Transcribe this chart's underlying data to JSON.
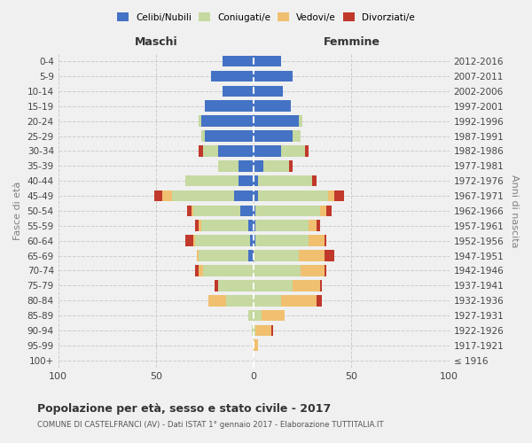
{
  "age_groups": [
    "100+",
    "95-99",
    "90-94",
    "85-89",
    "80-84",
    "75-79",
    "70-74",
    "65-69",
    "60-64",
    "55-59",
    "50-54",
    "45-49",
    "40-44",
    "35-39",
    "30-34",
    "25-29",
    "20-24",
    "15-19",
    "10-14",
    "5-9",
    "0-4"
  ],
  "birth_years": [
    "≤ 1916",
    "1917-1921",
    "1922-1926",
    "1927-1931",
    "1932-1936",
    "1937-1941",
    "1942-1946",
    "1947-1951",
    "1952-1956",
    "1957-1961",
    "1962-1966",
    "1967-1971",
    "1972-1976",
    "1977-1981",
    "1982-1986",
    "1987-1991",
    "1992-1996",
    "1997-2001",
    "2002-2006",
    "2007-2011",
    "2012-2016"
  ],
  "male_celibi": [
    0,
    0,
    0,
    0,
    0,
    0,
    0,
    3,
    2,
    3,
    7,
    10,
    8,
    8,
    18,
    25,
    27,
    25,
    16,
    22,
    16
  ],
  "male_coniugati": [
    0,
    0,
    1,
    3,
    14,
    18,
    26,
    25,
    28,
    24,
    24,
    32,
    27,
    10,
    8,
    2,
    1,
    0,
    0,
    0,
    0
  ],
  "male_vedovi": [
    0,
    0,
    0,
    0,
    9,
    0,
    2,
    1,
    1,
    1,
    1,
    5,
    0,
    0,
    0,
    0,
    0,
    0,
    0,
    0,
    0
  ],
  "male_divorziati": [
    0,
    0,
    0,
    0,
    0,
    2,
    2,
    0,
    4,
    2,
    2,
    4,
    0,
    0,
    2,
    0,
    0,
    0,
    0,
    0,
    0
  ],
  "female_celibi": [
    0,
    0,
    0,
    0,
    0,
    0,
    0,
    0,
    1,
    1,
    1,
    2,
    2,
    5,
    14,
    20,
    23,
    19,
    15,
    20,
    14
  ],
  "female_coniugati": [
    0,
    0,
    1,
    4,
    14,
    20,
    24,
    23,
    27,
    27,
    33,
    36,
    28,
    13,
    12,
    4,
    2,
    0,
    0,
    0,
    0
  ],
  "female_vedovi": [
    0,
    2,
    8,
    12,
    18,
    14,
    12,
    13,
    8,
    4,
    3,
    3,
    0,
    0,
    0,
    0,
    0,
    0,
    0,
    0,
    0
  ],
  "female_divorziati": [
    0,
    0,
    1,
    0,
    3,
    1,
    1,
    5,
    1,
    2,
    3,
    5,
    2,
    2,
    2,
    0,
    0,
    0,
    0,
    0,
    0
  ],
  "color_celibi": "#4472c4",
  "color_coniugati": "#c5d9a0",
  "color_vedovi": "#f0c070",
  "color_divorziati": "#c0392b",
  "bg_color": "#f0f0f0",
  "grid_color": "#cccccc",
  "title": "Popolazione per età, sesso e stato civile - 2017",
  "subtitle": "COMUNE DI CASTELFRANCI (AV) - Dati ISTAT 1° gennaio 2017 - Elaborazione TUTTITALIA.IT",
  "xlabel_left": "Maschi",
  "xlabel_right": "Femmine",
  "ylabel_left": "Fasce di età",
  "ylabel_right": "Anni di nascita",
  "xlim": 100
}
